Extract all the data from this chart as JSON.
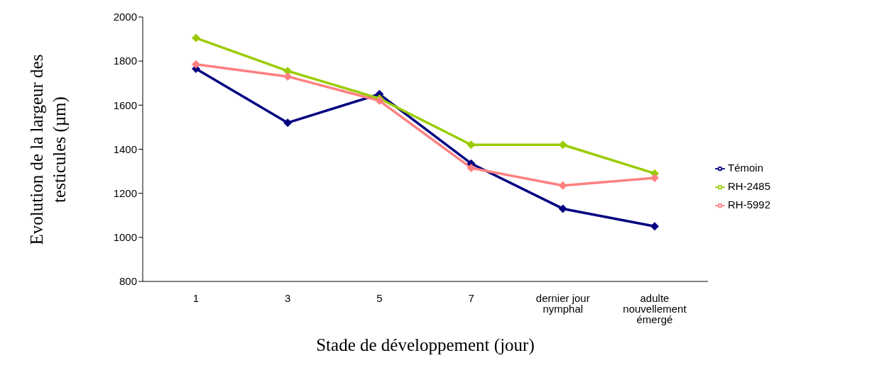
{
  "chart_data": {
    "type": "line",
    "xlabel": "Stade de développement (jour)",
    "ylabel": "Evolution de la largeur des testicules (µm)",
    "categories": [
      "1",
      "3",
      "5",
      "7",
      "dernier jour nymphal",
      "adulte nouvellement émergé"
    ],
    "series": [
      {
        "name": "Témoin",
        "color": "#000080",
        "values": [
          1765,
          1520,
          1650,
          1335,
          1130,
          1050
        ]
      },
      {
        "name": "RH-2485",
        "color": "#99cc00",
        "values": [
          1905,
          1755,
          1630,
          1420,
          1420,
          1290
        ]
      },
      {
        "name": "RH-5992",
        "color": "#ff8080",
        "values": [
          1785,
          1730,
          1620,
          1315,
          1235,
          1270
        ]
      }
    ],
    "ylim": [
      800,
      2000
    ],
    "yticks": [
      800,
      1000,
      1200,
      1400,
      1600,
      1800,
      2000
    ],
    "grid": false,
    "legend": "right",
    "marker": "diamond",
    "line_style": "solid"
  }
}
